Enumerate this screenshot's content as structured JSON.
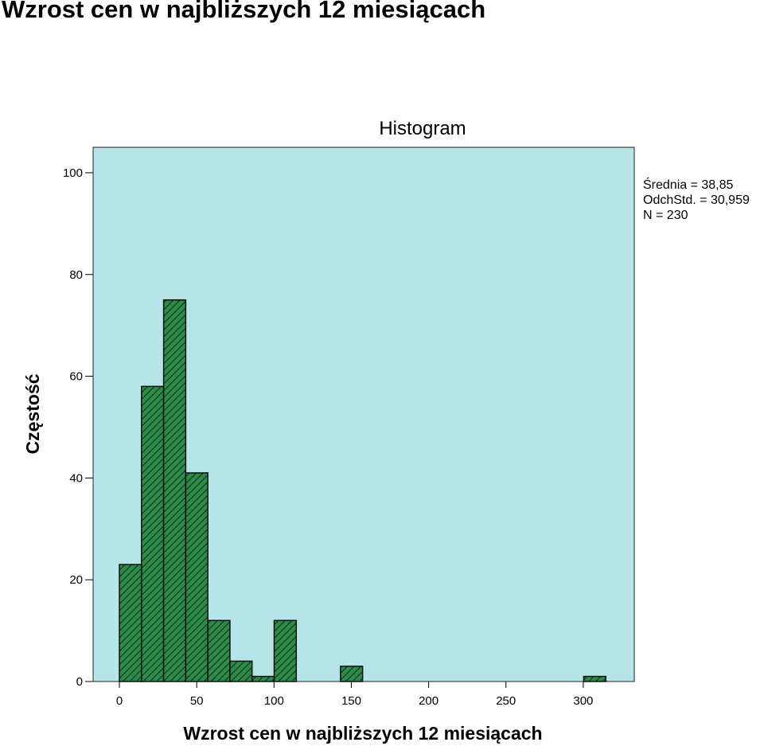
{
  "page": {
    "title": "Wzrost cen w najbliższych 12 miesiącach"
  },
  "chart_data": {
    "type": "bar",
    "title": "Histogram",
    "xlabel": "Wzrost cen w najbliższych 12 miesiącach",
    "ylabel": "Częstość",
    "xlim": [
      -17,
      333
    ],
    "ylim": [
      0,
      105
    ],
    "x_ticks": [
      0,
      50,
      100,
      150,
      200,
      250,
      300
    ],
    "y_ticks": [
      0,
      20,
      40,
      60,
      80,
      100
    ],
    "bin_width": 14.3,
    "bins": [
      {
        "start": 0,
        "count": 23
      },
      {
        "start": 14.3,
        "count": 58
      },
      {
        "start": 28.6,
        "count": 75
      },
      {
        "start": 42.9,
        "count": 41
      },
      {
        "start": 57.2,
        "count": 12
      },
      {
        "start": 71.5,
        "count": 4
      },
      {
        "start": 85.8,
        "count": 1
      },
      {
        "start": 100.1,
        "count": 12
      },
      {
        "start": 143.0,
        "count": 3
      },
      {
        "start": 300.3,
        "count": 1
      }
    ],
    "stats": [
      "Średnia = 38,85",
      "OdchStd. = 30,959",
      "N = 230"
    ],
    "grid": false,
    "colors": {
      "plot_background": "#b5e5e8",
      "bar_fill": "#2d8a48",
      "bar_stroke": "#111111"
    }
  }
}
